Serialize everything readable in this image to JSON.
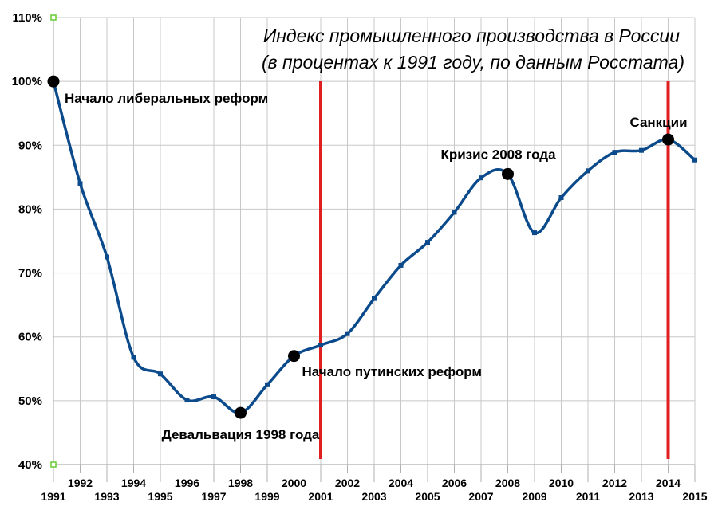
{
  "chart_data": {
    "type": "line",
    "title": "Индекс промышленного производства в России",
    "subtitle": "(в процентах к 1991 году, по данным Росстата)",
    "xlabel": "",
    "ylabel": "",
    "x": [
      1991,
      1992,
      1993,
      1994,
      1995,
      1996,
      1997,
      1998,
      1999,
      2000,
      2001,
      2002,
      2003,
      2004,
      2005,
      2006,
      2007,
      2008,
      2009,
      2010,
      2011,
      2012,
      2013,
      2014,
      2015
    ],
    "values": [
      100,
      84,
      72.5,
      56.8,
      54.2,
      50.1,
      50.6,
      48.1,
      52.5,
      57.0,
      58.7,
      60.5,
      66.0,
      71.2,
      74.8,
      79.5,
      84.9,
      85.5,
      76.3,
      81.8,
      86.0,
      88.9,
      89.2,
      90.9,
      87.7
    ],
    "ylim": [
      40,
      110
    ],
    "yticks": [
      "40%",
      "50%",
      "60%",
      "70%",
      "80%",
      "90%",
      "100%",
      "110%"
    ],
    "xticks": [
      "1991",
      "1992",
      "1993",
      "1994",
      "1995",
      "1996",
      "1997",
      "1998",
      "1999",
      "2000",
      "2001",
      "2002",
      "2003",
      "2004",
      "2005",
      "2006",
      "2007",
      "2008",
      "2009",
      "2010",
      "2011",
      "2012",
      "2013",
      "2014",
      "2015"
    ],
    "grid": true,
    "legend": "none",
    "line_color": "#0b4a8b",
    "marker_color": "#000000",
    "vline_color": "#e02020",
    "vlines": [
      2001,
      2014
    ],
    "annotations": [
      {
        "year": 1991,
        "value": 100,
        "text": "Начало либеральных реформ"
      },
      {
        "year": 1998,
        "value": 48.1,
        "text": "Девальвация 1998 года"
      },
      {
        "year": 2000,
        "value": 57.0,
        "text": "Начало путинских реформ"
      },
      {
        "year": 2008,
        "value": 85.5,
        "text": "Кризис 2008 года"
      },
      {
        "year": 2014,
        "value": 90.9,
        "text": "Санкции"
      }
    ]
  }
}
